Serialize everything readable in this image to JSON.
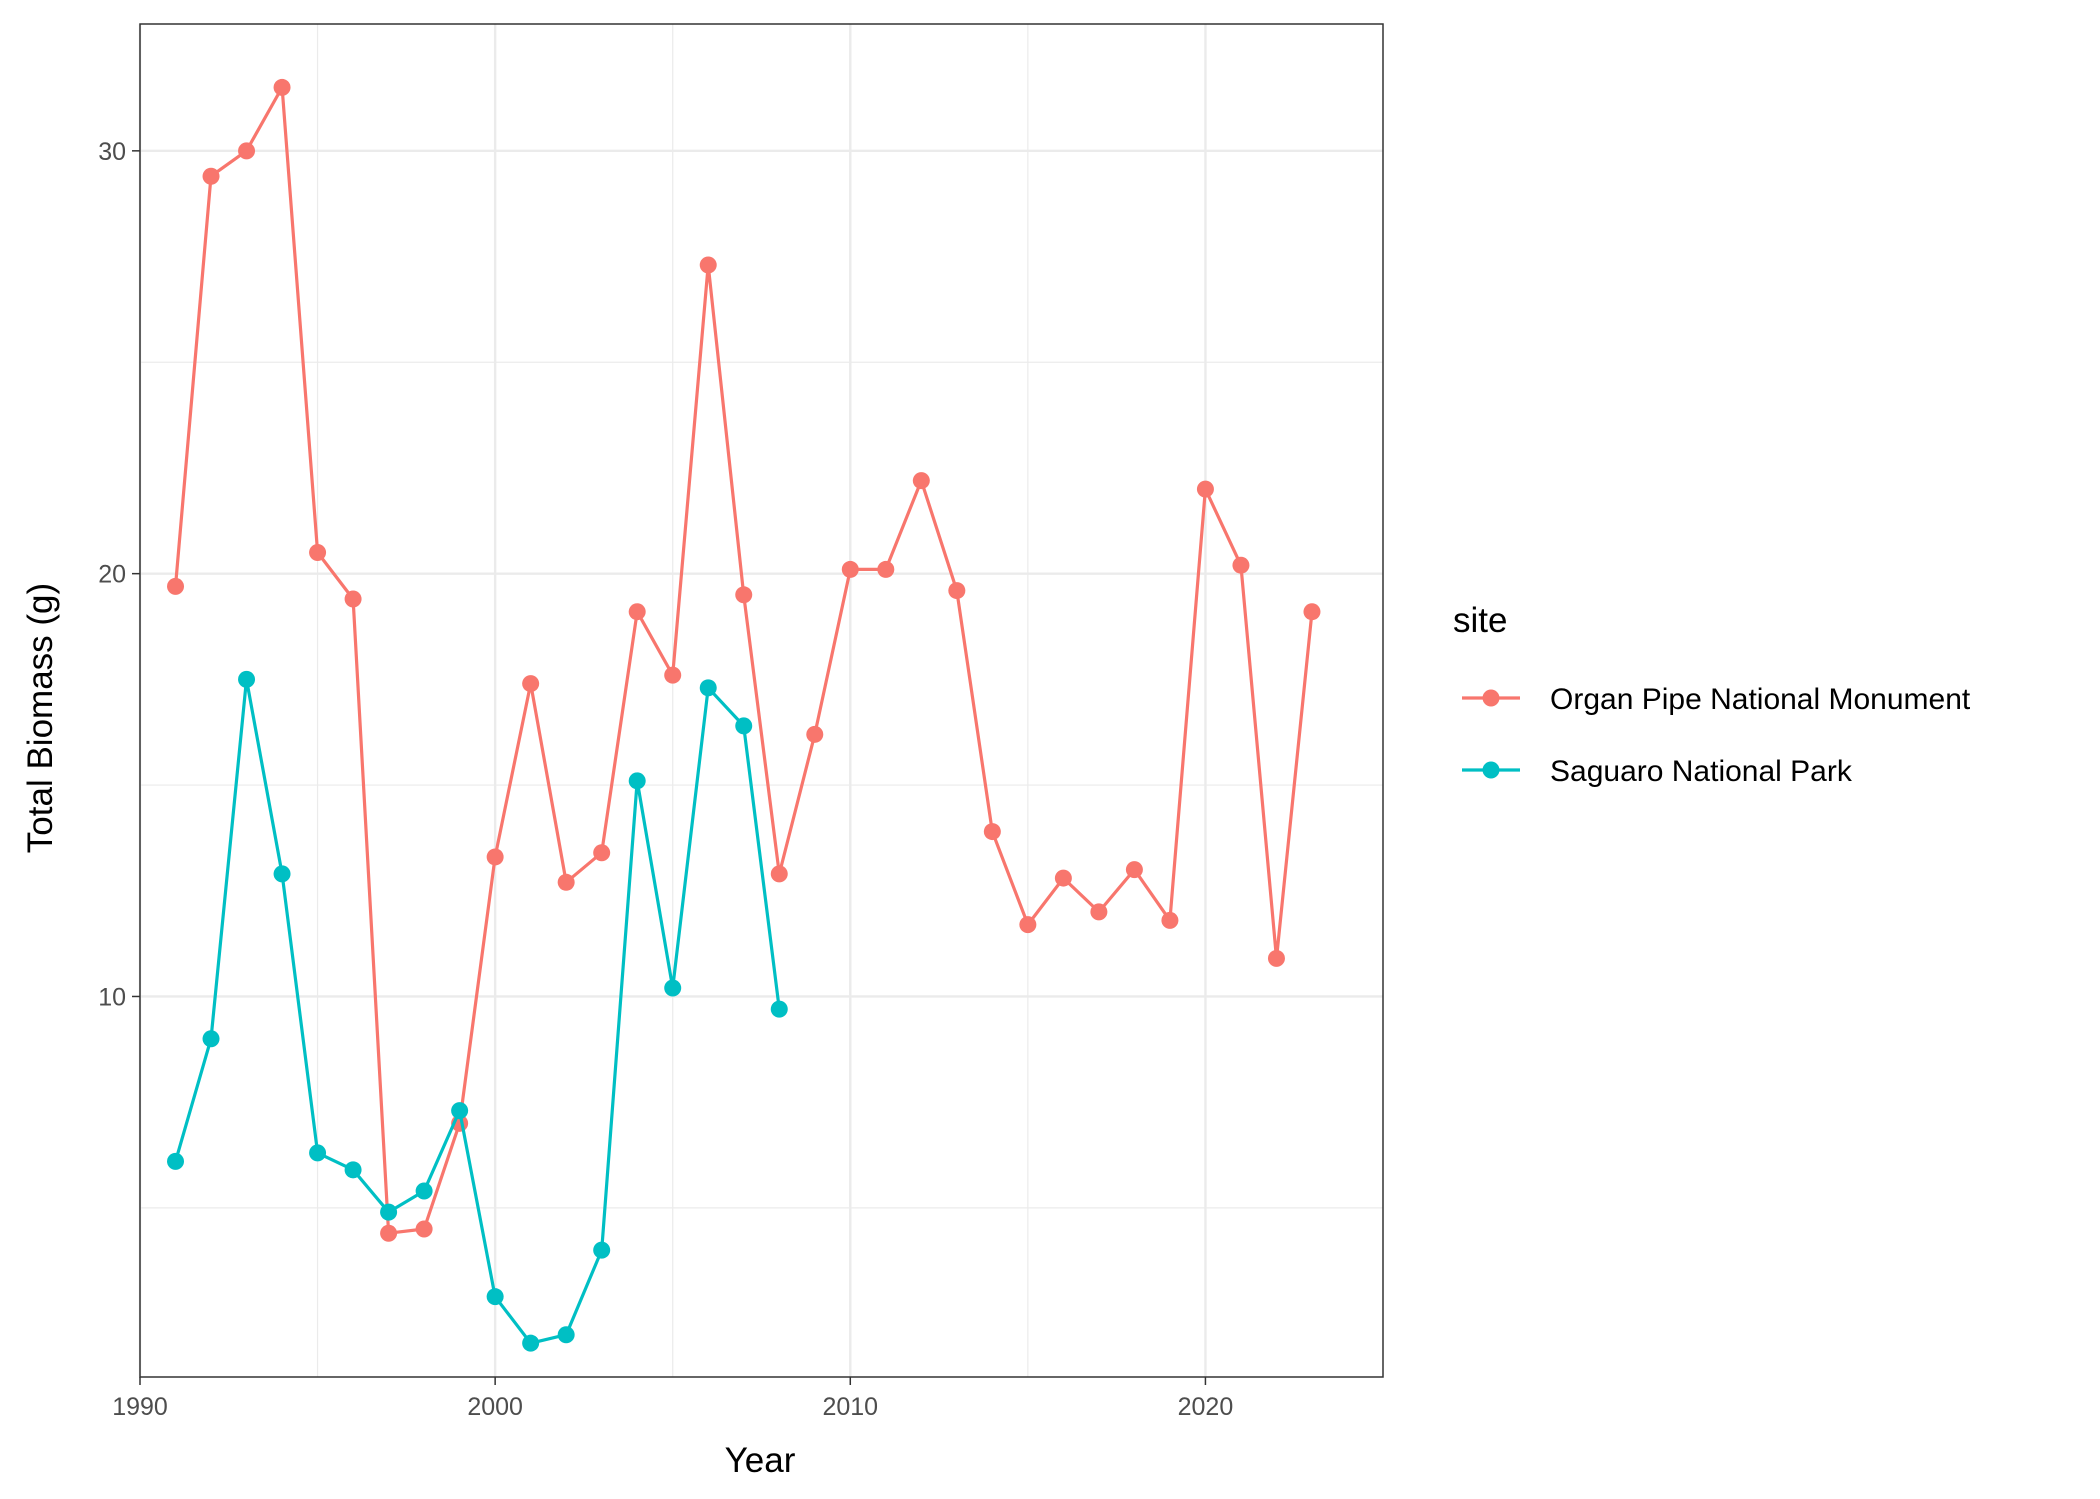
{
  "chart_data": {
    "type": "line",
    "xlabel": "Year",
    "ylabel": "Total Biomass (g)",
    "xlim": [
      1990,
      2025
    ],
    "ylim": [
      1.0,
      33.0
    ],
    "x_ticks": [
      1990,
      2000,
      2010,
      2020
    ],
    "y_ticks": [
      10,
      20,
      30
    ],
    "grid": true,
    "legend": {
      "title": "site",
      "position": "right"
    },
    "series": [
      {
        "name": "Organ Pipe National Monument",
        "color": "#F8766D",
        "x": [
          1991,
          1992,
          1993,
          1994,
          1995,
          1996,
          1997,
          1998,
          1999,
          2000,
          2001,
          2002,
          2003,
          2004,
          2005,
          2006,
          2007,
          2008,
          2009,
          2010,
          2011,
          2012,
          2013,
          2014,
          2015,
          2016,
          2017,
          2018,
          2019,
          2020,
          2021,
          2022,
          2023
        ],
        "y": [
          19.7,
          29.4,
          30.0,
          31.5,
          20.5,
          19.4,
          4.4,
          4.5,
          7.0,
          13.3,
          17.4,
          12.7,
          13.4,
          19.1,
          17.6,
          27.3,
          19.5,
          12.9,
          16.2,
          20.1,
          20.1,
          22.2,
          19.6,
          13.9,
          11.7,
          12.8,
          12.0,
          13.0,
          11.8,
          22.0,
          20.2,
          10.9,
          19.1
        ]
      },
      {
        "name": "Saguaro National Park",
        "color": "#00BFC4",
        "x": [
          1991,
          1992,
          1993,
          1994,
          1995,
          1996,
          1997,
          1998,
          1999,
          2000,
          2001,
          2002,
          2003,
          2004,
          2005,
          2006,
          2007,
          2008
        ],
        "y": [
          6.1,
          9.0,
          17.5,
          12.9,
          6.3,
          5.9,
          4.9,
          5.4,
          7.3,
          2.9,
          1.8,
          2.0,
          4.0,
          15.1,
          10.2,
          17.3,
          16.4,
          9.7
        ]
      }
    ]
  }
}
